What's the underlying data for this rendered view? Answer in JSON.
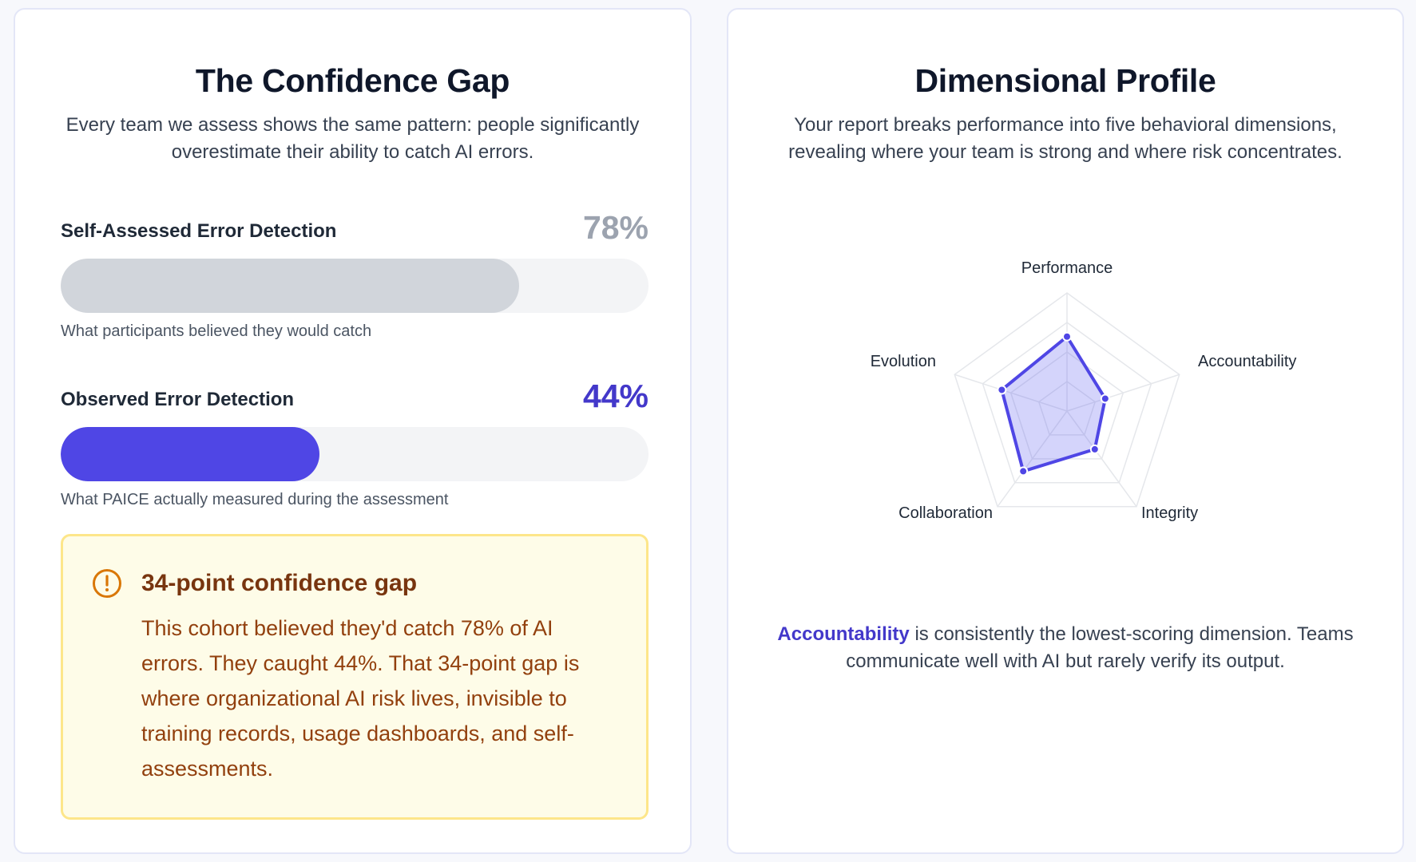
{
  "confidence_gap": {
    "title": "The Confidence Gap",
    "description": "Every team we assess shows the same pattern: people significantly overestimate their ability to catch AI errors.",
    "self_assessed": {
      "label": "Self-Assessed Error Detection",
      "value_text": "78%",
      "value": 78,
      "note": "What participants believed they would catch"
    },
    "observed": {
      "label": "Observed Error Detection",
      "value_text": "44%",
      "value": 44,
      "note": "What PAICE actually measured during the assessment"
    },
    "callout": {
      "icon": "exclamation-circle-icon",
      "title": "34-point confidence gap",
      "body": "This cohort believed they'd catch 78% of AI errors. They caught 44%. That 34-point gap is where organizational AI risk lives, invisible to training records, usage dashboards, and self-assessments."
    }
  },
  "dimensional_profile": {
    "title": "Dimensional Profile",
    "description": "Your report breaks performance into five behavioral dimensions, revealing where your team is strong and where risk concentrates.",
    "insight_highlight": "Accountability",
    "insight_rest": " is consistently the lowest-scoring dimension. Teams communicate well with AI but rarely verify its output."
  },
  "chart_data": {
    "type": "radar",
    "axes": [
      "Performance",
      "Accountability",
      "Integrity",
      "Collaboration",
      "Evolution"
    ],
    "values": [
      0.63,
      0.34,
      0.4,
      0.63,
      0.58
    ],
    "range": [
      0,
      1
    ],
    "grid_levels": 4,
    "grid": true,
    "legend": "none"
  },
  "colors": {
    "accent": "#4f46e5",
    "accent_text": "#4338ca",
    "muted_bar": "#d1d5db",
    "callout_bg": "#fefce8",
    "callout_border": "#fde68a",
    "callout_text": "#92400e"
  }
}
